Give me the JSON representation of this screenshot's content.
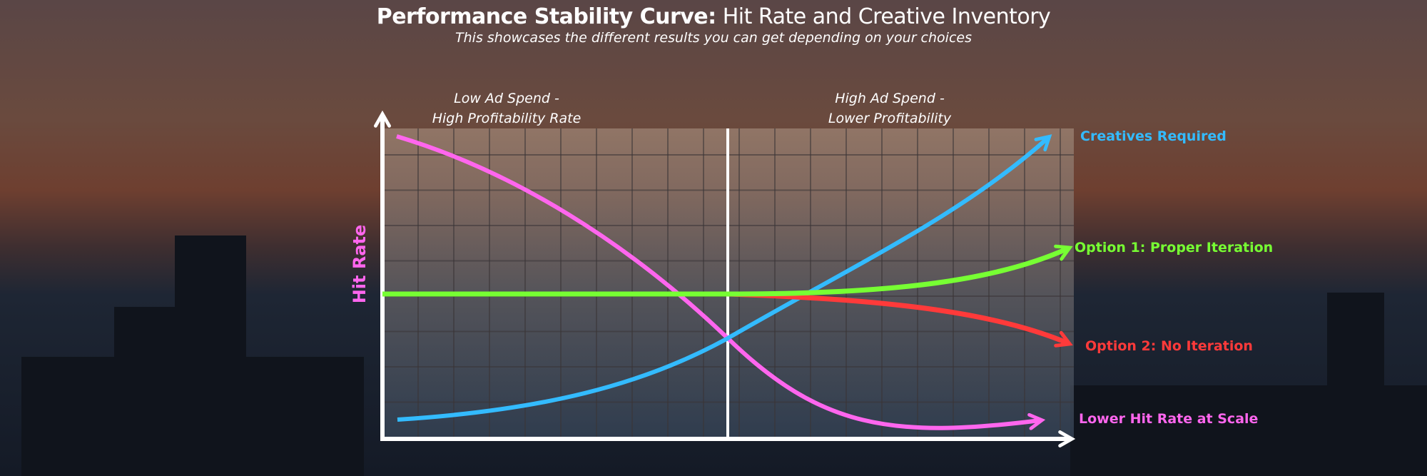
{
  "header": {
    "title_bold": "Performance Stability Curve:",
    "title_rest": "Hit Rate and Creative Inventory",
    "subtitle": "This showcases the different results you can get depending on your choices"
  },
  "sections": {
    "left": {
      "line1": "Low Ad Spend -",
      "line2": "High Profitability Rate"
    },
    "right": {
      "line1": "High Ad Spend -",
      "line2": "Lower Profitability"
    }
  },
  "axes": {
    "y_label": "Hit Rate"
  },
  "curves": [
    {
      "label": "Creatives Required",
      "color": "#33bbff",
      "trend": "rising"
    },
    {
      "label": "Option 1: Proper Iteration",
      "color": "#77ff33",
      "trend": "flat then rising"
    },
    {
      "label": "Option 2: No Iteration",
      "color": "#ff3a3a",
      "trend": "flat then falling"
    },
    {
      "label": "Lower Hit Rate at Scale",
      "color": "#ff66ee",
      "trend": "falling"
    }
  ]
}
